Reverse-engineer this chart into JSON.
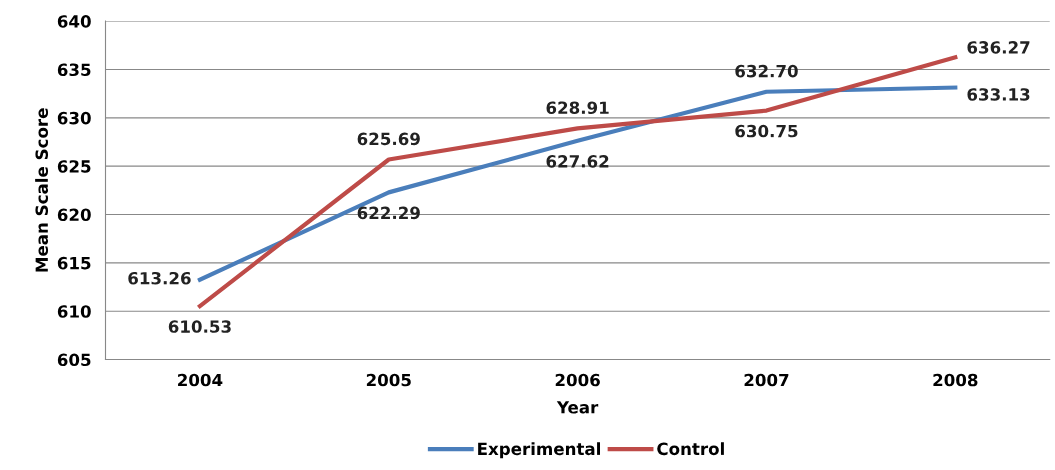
{
  "chart_data": {
    "type": "line",
    "xlabel": "Year",
    "ylabel": "Mean Scale Score",
    "categories": [
      "2004",
      "2005",
      "2006",
      "2007",
      "2008"
    ],
    "series": [
      {
        "name": "Experimental",
        "color": "#4a7ebb",
        "values": [
          613.26,
          622.29,
          627.62,
          632.7,
          633.13
        ],
        "value_labels": [
          "613.26",
          "622.29",
          "627.62",
          "632.70",
          "633.13"
        ]
      },
      {
        "name": "Control",
        "color": "#be4b48",
        "values": [
          610.53,
          625.69,
          628.91,
          630.75,
          636.27
        ],
        "value_labels": [
          "610.53",
          "625.69",
          "628.91",
          "630.75",
          "636.27"
        ]
      }
    ],
    "ylim": [
      605,
      640
    ],
    "yticks": [
      605,
      610,
      615,
      620,
      625,
      630,
      635,
      640
    ],
    "grid": "y",
    "legend": "bottom",
    "marker": "none",
    "line_style": "solid"
  }
}
